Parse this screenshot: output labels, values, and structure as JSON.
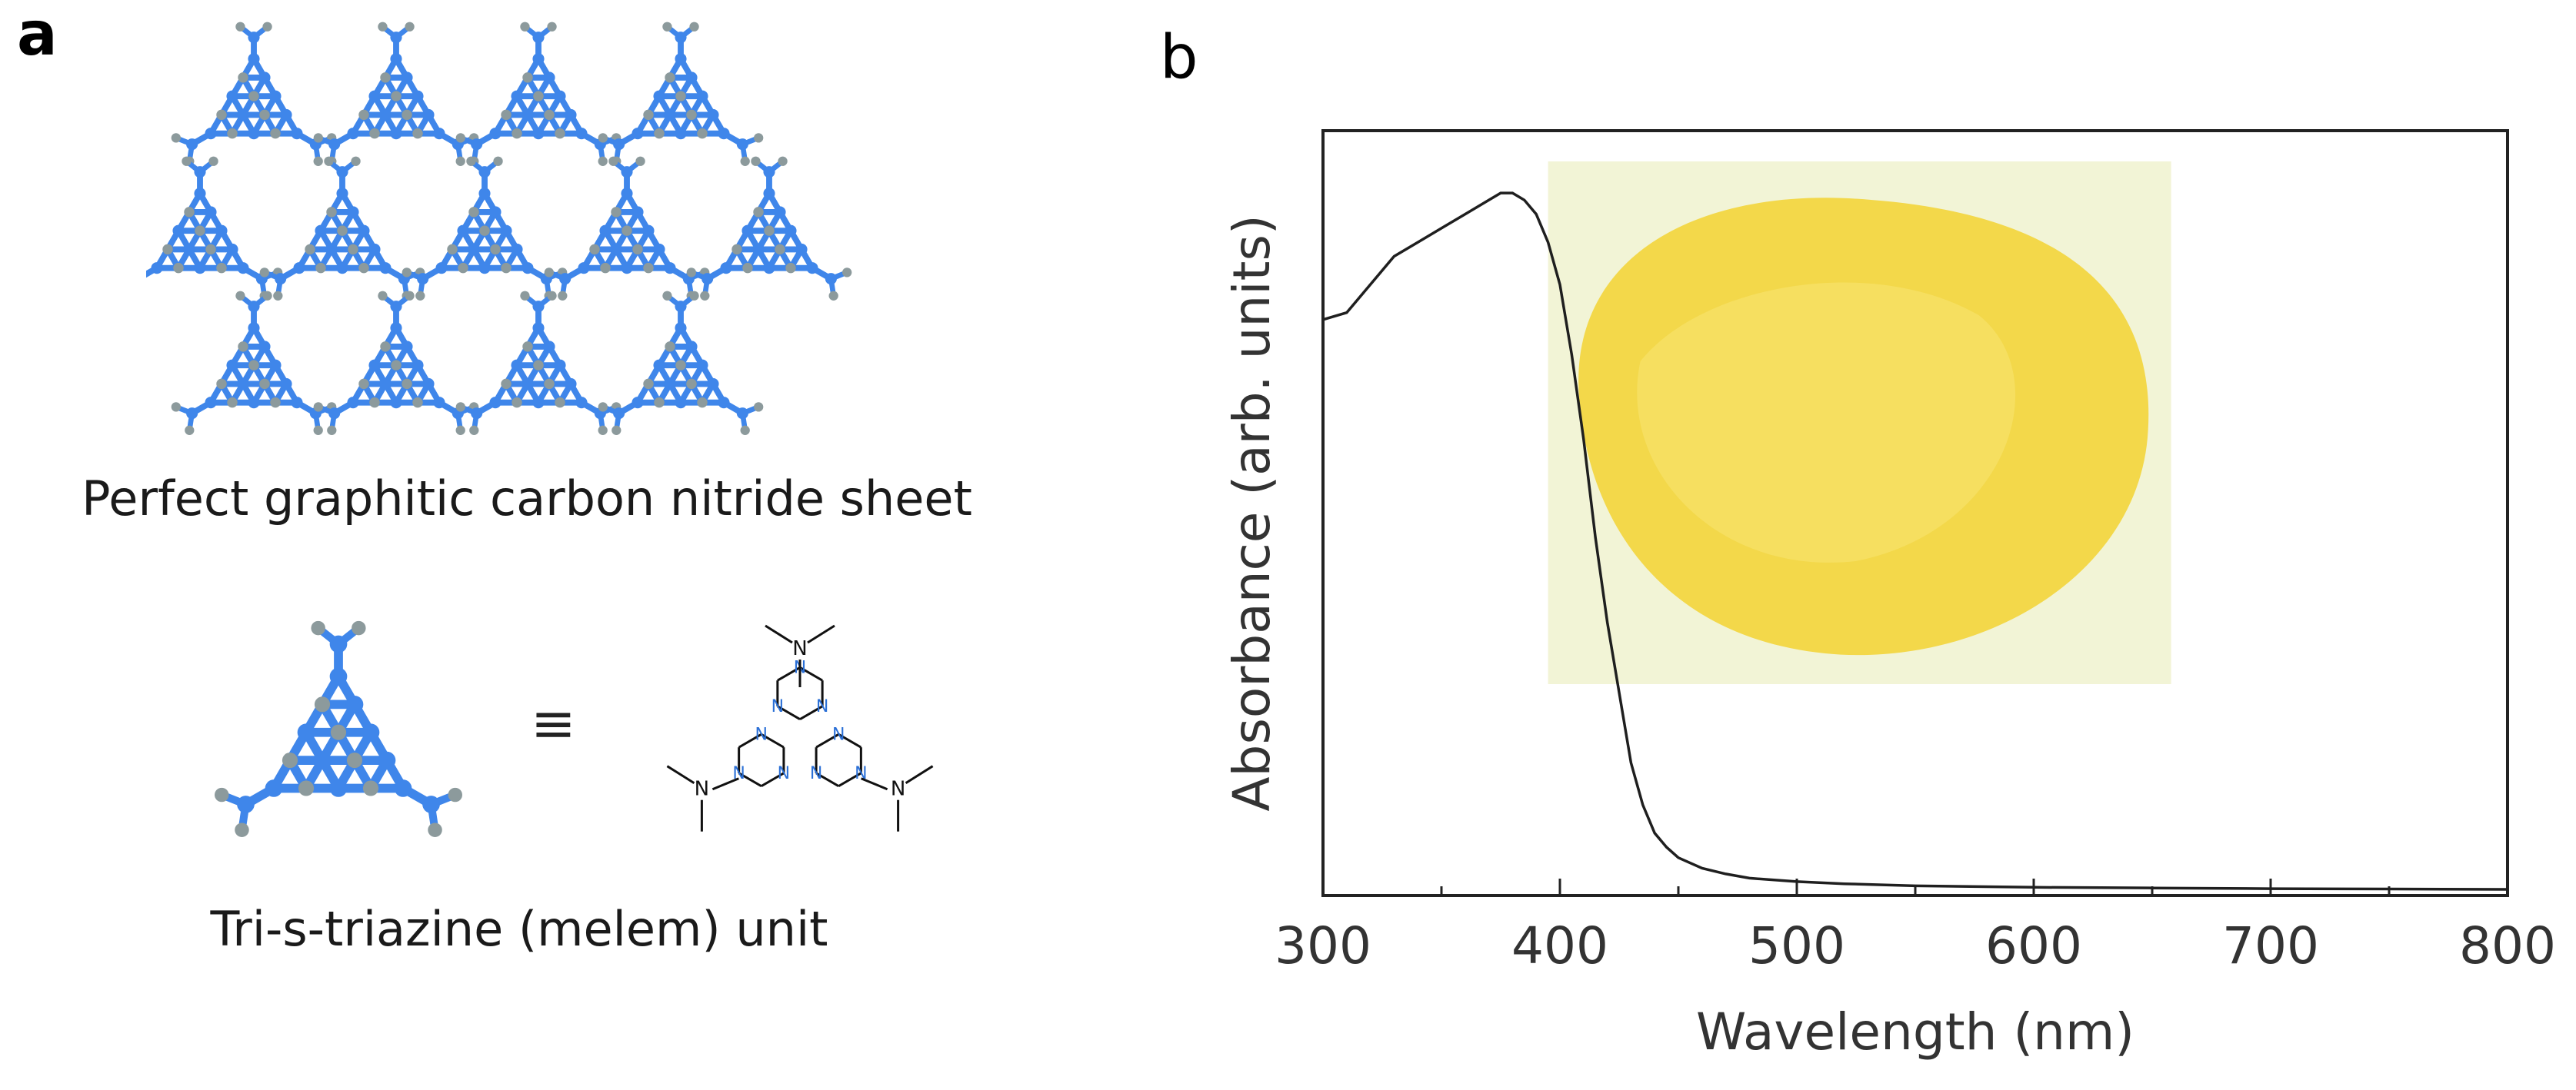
{
  "panel_a": {
    "letter": "a",
    "sheet_caption": "Perfect graphitic carbon nitride sheet",
    "unit_caption": "Tri-s-triazine (melem) unit",
    "equivalence_symbol": "≡",
    "atom_colors": {
      "carbon": "#8c9a9c",
      "nitrogen": "#3f86ea"
    },
    "formula_atom_label": "N"
  },
  "panel_b": {
    "letter": "b",
    "photo_description_colors": {
      "powder": "#f3d84a",
      "background": "#f2f4d6"
    }
  },
  "chart_data": {
    "type": "line",
    "xlabel": "Wavelength (nm)",
    "ylabel": "Absorbance (arb. units)",
    "xlim": [
      300,
      800
    ],
    "ylim": [
      0,
      1
    ],
    "xticks": [
      "300",
      "400",
      "500",
      "600",
      "700",
      "800"
    ],
    "yticks_labeled": false,
    "grid": false,
    "series": [
      {
        "x": [
          300,
          310,
          320,
          330,
          340,
          350,
          360,
          370,
          375,
          380,
          385,
          390,
          395,
          400,
          405,
          410,
          415,
          420,
          425,
          430,
          435,
          440,
          445,
          450,
          460,
          470,
          480,
          500,
          520,
          550,
          600,
          650,
          700,
          750,
          800
        ],
        "y": [
          0.81,
          0.82,
          0.86,
          0.9,
          0.92,
          0.94,
          0.96,
          0.98,
          0.99,
          0.99,
          0.98,
          0.96,
          0.92,
          0.86,
          0.76,
          0.64,
          0.5,
          0.38,
          0.28,
          0.18,
          0.12,
          0.08,
          0.06,
          0.045,
          0.03,
          0.022,
          0.016,
          0.011,
          0.008,
          0.005,
          0.003,
          0.002,
          0.001,
          0.0005,
          0.0
        ]
      }
    ]
  }
}
